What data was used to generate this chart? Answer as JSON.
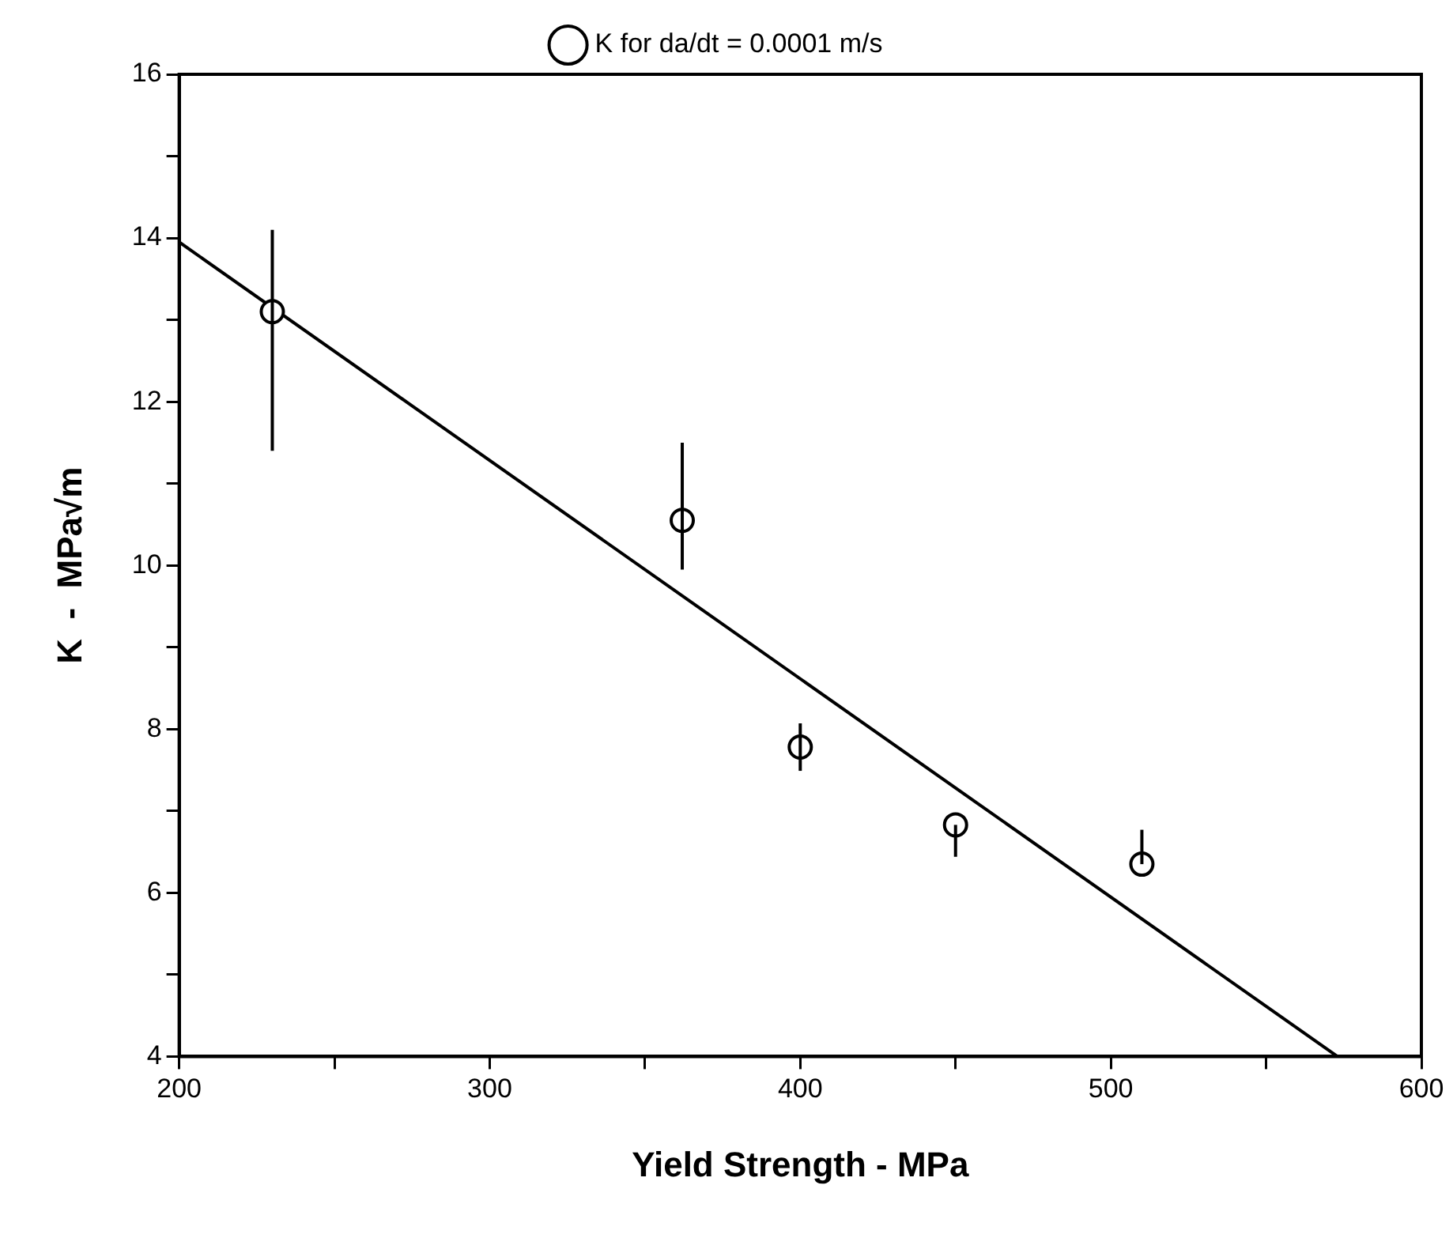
{
  "chart_data": {
    "type": "scatter",
    "xlabel": "Yield Strength - MPa",
    "ylabel": "K  -  MPa√m",
    "xlim": [
      200,
      600
    ],
    "xticks": [
      200,
      {
        "value": 250,
        "label": null
      },
      300,
      {
        "value": 350,
        "label": null
      },
      400,
      {
        "value": 450,
        "label": null
      },
      500,
      {
        "value": 550,
        "label": null
      },
      600
    ],
    "ylim": [
      4,
      16
    ],
    "yticks": [
      4,
      {
        "value": 5,
        "label": null
      },
      6,
      {
        "value": 7,
        "label": null
      },
      8,
      {
        "value": 9,
        "label": null
      },
      10,
      {
        "value": 11,
        "label": null
      },
      12,
      {
        "value": 13,
        "label": null
      },
      14,
      {
        "value": 15,
        "label": null
      },
      16
    ],
    "grid": false,
    "legend": "top",
    "marker": "circle",
    "series": [
      {
        "name": "K for da/dt = 0.0001 m/s",
        "color": "#000000",
        "x": [
          230,
          362,
          400,
          450,
          510
        ],
        "values": [
          13.1,
          10.55,
          7.78,
          6.83,
          6.35
        ],
        "errors": [
          [
            11.4,
            14.1
          ],
          [
            9.95,
            11.5
          ],
          [
            7.49,
            8.07
          ],
          [
            6.44,
            6.83
          ],
          [
            6.35,
            6.77
          ]
        ]
      },
      {
        "type": "line",
        "color": "#000000",
        "x": [
          200,
          573
        ],
        "values": [
          13.95,
          4
        ],
        "marker": "none"
      }
    ]
  }
}
